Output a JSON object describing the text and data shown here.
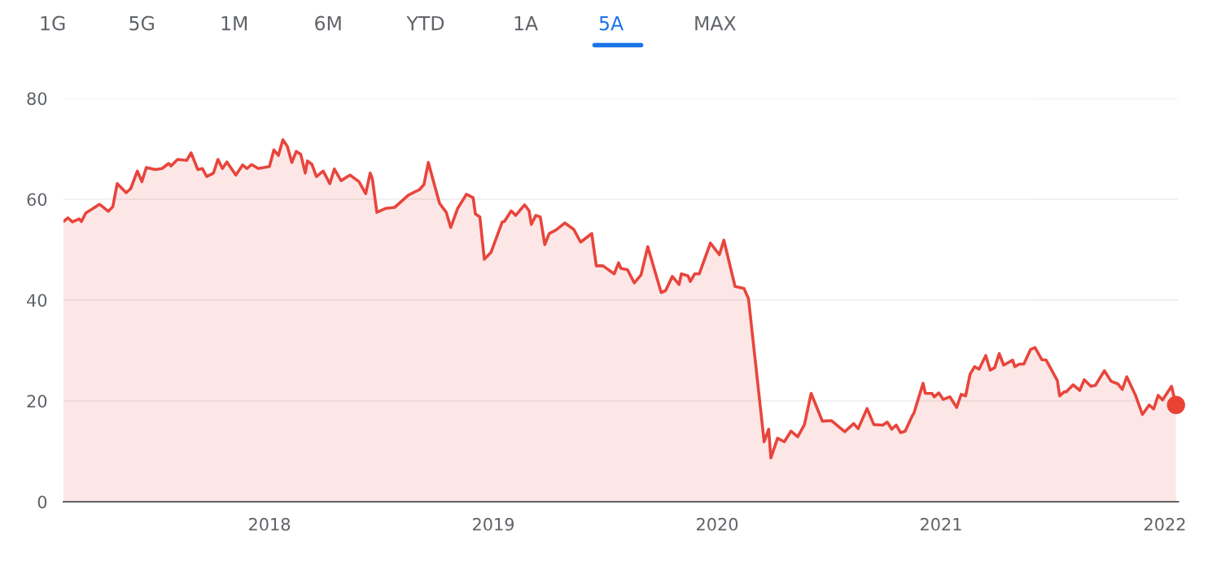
{
  "chart_data": {
    "type": "area",
    "annotations": [
      "1G",
      "5G",
      "1M",
      "6M",
      "YTD",
      "1A",
      "5A",
      "MAX"
    ],
    "xlim": [
      2017.08,
      2022.06
    ],
    "xticks": [
      2018,
      2019,
      2020,
      2021,
      2022
    ],
    "ylim": [
      0,
      80
    ],
    "yticks": [
      0,
      20,
      40,
      60,
      80
    ],
    "grid": "y",
    "series": [
      {
        "color": "#e8453c",
        "x": [
          2017.08,
          2017.1,
          2017.12,
          2017.15,
          2017.16,
          2017.18,
          2017.21,
          2017.24,
          2017.25,
          2017.28,
          2017.3,
          2017.32,
          2017.36,
          2017.38,
          2017.41,
          2017.43,
          2017.45,
          2017.49,
          2017.52,
          2017.55,
          2017.56,
          2017.59,
          2017.63,
          2017.65,
          2017.68,
          2017.7,
          2017.72,
          2017.75,
          2017.77,
          2017.79,
          2017.81,
          2017.85,
          2017.88,
          2017.9,
          2017.92,
          2017.95,
          2018.0,
          2018.02,
          2018.04,
          2018.06,
          2018.08,
          2018.1,
          2018.12,
          2018.14,
          2018.16,
          2018.17,
          2018.19,
          2018.21,
          2018.24,
          2018.27,
          2018.29,
          2018.32,
          2018.36,
          2018.4,
          2018.43,
          2018.45,
          2018.46,
          2018.48,
          2018.52,
          2018.56,
          2018.62,
          2018.67,
          2018.69,
          2018.71,
          2018.73,
          2018.76,
          2018.79,
          2018.81,
          2018.84,
          2018.88,
          2018.91,
          2018.92,
          2018.94,
          2018.96,
          2018.99,
          2019.04,
          2019.05,
          2019.08,
          2019.1,
          2019.14,
          2019.16,
          2019.17,
          2019.19,
          2019.21,
          2019.23,
          2019.25,
          2019.28,
          2019.32,
          2019.36,
          2019.39,
          2019.44,
          2019.46,
          2019.49,
          2019.54,
          2019.56,
          2019.57,
          2019.6,
          2019.63,
          2019.66,
          2019.69,
          2019.75,
          2019.77,
          2019.8,
          2019.83,
          2019.84,
          2019.87,
          2019.88,
          2019.9,
          2019.92,
          2019.97,
          2020.01,
          2020.03,
          2020.08,
          2020.12,
          2020.14,
          2020.21,
          2020.23,
          2020.24,
          2020.27,
          2020.3,
          2020.33,
          2020.36,
          2020.39,
          2020.42,
          2020.47,
          2020.51,
          2020.57,
          2020.61,
          2020.63,
          2020.67,
          2020.7,
          2020.74,
          2020.76,
          2020.78,
          2020.8,
          2020.82,
          2020.84,
          2020.87,
          2020.88,
          2020.92,
          2020.93,
          2020.96,
          2020.97,
          2020.99,
          2021.01,
          2021.04,
          2021.07,
          2021.09,
          2021.11,
          2021.13,
          2021.15,
          2021.17,
          2021.2,
          2021.22,
          2021.24,
          2021.26,
          2021.28,
          2021.32,
          2021.33,
          2021.35,
          2021.37,
          2021.4,
          2021.42,
          2021.45,
          2021.47,
          2021.52,
          2021.53,
          2021.55,
          2021.56,
          2021.59,
          2021.62,
          2021.64,
          2021.67,
          2021.69,
          2021.73,
          2021.76,
          2021.79,
          2021.81,
          2021.83,
          2021.87,
          2021.9,
          2021.93,
          2021.95,
          2021.97,
          2021.99,
          2022.03,
          2022.05
        ],
        "values": [
          55.6,
          56.3,
          55.5,
          56.1,
          55.6,
          57.3,
          58.1,
          59.0,
          58.7,
          57.6,
          58.5,
          63.1,
          61.3,
          62.1,
          65.6,
          63.5,
          66.3,
          65.9,
          66.1,
          67.1,
          66.6,
          67.9,
          67.7,
          69.2,
          65.9,
          66.1,
          64.5,
          65.2,
          67.9,
          66.1,
          67.4,
          64.8,
          66.8,
          66.1,
          66.9,
          66.1,
          66.5,
          69.8,
          68.7,
          71.8,
          70.5,
          67.3,
          69.5,
          68.9,
          65.2,
          67.6,
          66.9,
          64.5,
          65.6,
          63.1,
          66.0,
          63.7,
          64.8,
          63.5,
          61.1,
          65.2,
          64.0,
          57.4,
          58.2,
          58.4,
          60.8,
          61.9,
          62.9,
          67.3,
          64.0,
          59.2,
          57.4,
          54.4,
          58.1,
          61.0,
          60.3,
          57.1,
          56.5,
          48.1,
          49.5,
          55.5,
          55.6,
          57.7,
          56.8,
          58.9,
          57.7,
          55.0,
          56.8,
          56.5,
          51.0,
          53.2,
          53.9,
          55.3,
          54.0,
          51.5,
          53.2,
          46.8,
          46.8,
          45.2,
          47.4,
          46.3,
          46.0,
          43.4,
          45.0,
          50.6,
          41.5,
          41.9,
          44.7,
          43.1,
          45.2,
          44.8,
          43.7,
          45.2,
          45.2,
          51.3,
          49.0,
          51.9,
          42.7,
          42.3,
          40.3,
          11.9,
          14.4,
          8.7,
          12.6,
          11.9,
          14.0,
          12.9,
          15.3,
          21.5,
          16.0,
          16.1,
          13.9,
          15.5,
          14.5,
          18.5,
          15.3,
          15.2,
          15.8,
          14.4,
          15.2,
          13.7,
          14.0,
          16.9,
          17.7,
          23.5,
          21.5,
          21.5,
          20.8,
          21.6,
          20.3,
          20.8,
          18.7,
          21.3,
          21.0,
          25.3,
          26.8,
          26.3,
          29.0,
          26.1,
          26.6,
          29.4,
          27.1,
          28.1,
          26.8,
          27.3,
          27.3,
          30.2,
          30.6,
          28.2,
          28.1,
          24.0,
          21.0,
          21.8,
          21.8,
          23.2,
          22.1,
          24.2,
          22.9,
          23.1,
          26.0,
          23.9,
          23.4,
          22.3,
          24.8,
          21.0,
          17.3,
          19.2,
          18.4,
          21.1,
          20.2,
          22.9,
          19.2
        ]
      },
      {
        "type": "scatter",
        "marker": "circle",
        "color": "#ea4335",
        "x": [
          2022.05
        ],
        "values": [
          19.2
        ]
      }
    ]
  }
}
